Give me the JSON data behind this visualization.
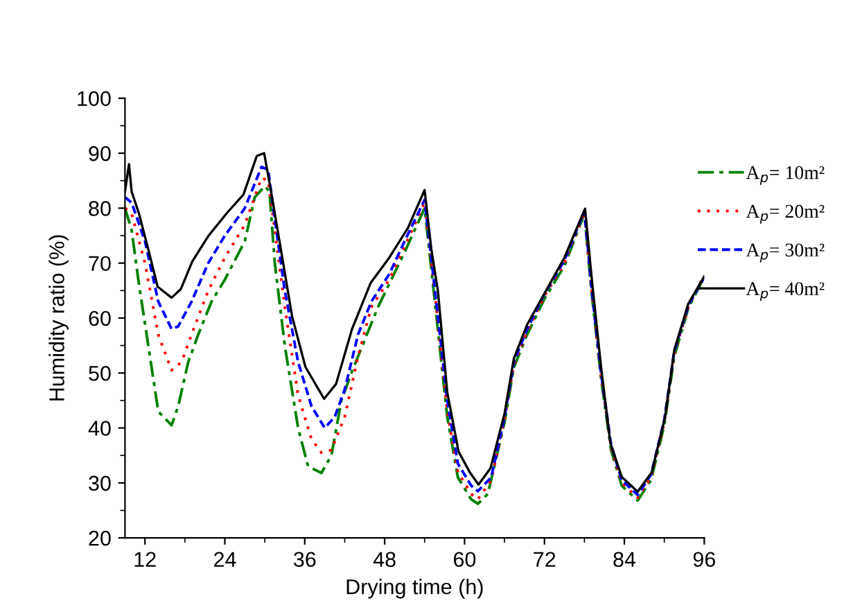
{
  "chart_data": {
    "type": "line",
    "xlabel": "Drying time (h)",
    "ylabel": "Humidity ratio (%)",
    "xlim": [
      9,
      96
    ],
    "xticks": [
      12,
      24,
      36,
      48,
      60,
      72,
      84,
      96
    ],
    "ylim": [
      20,
      100
    ],
    "yticks": [
      20,
      30,
      40,
      50,
      60,
      70,
      80,
      90,
      100
    ],
    "grid": false,
    "legend": "right",
    "marker": "none",
    "series": [
      {
        "name": "A$_{p}$= 10m²",
        "color": "#008000",
        "line_style": "dashdot",
        "x": [
          9,
          10,
          11,
          12.5,
          14,
          16,
          17,
          18.5,
          20,
          22,
          24,
          27,
          28.5,
          30,
          30.7,
          31.5,
          33,
          35,
          36.5,
          38.5,
          40,
          41.5,
          43,
          45,
          47,
          49,
          51,
          54,
          55,
          57.4,
          59,
          61,
          62,
          63.5,
          66,
          67.4,
          69.4,
          72,
          75,
          78,
          79,
          80.5,
          82,
          83.6,
          86,
          88,
          90,
          91.5,
          93.6,
          96
        ],
        "values": [
          80,
          76,
          67,
          55,
          43,
          40.5,
          44,
          52,
          57,
          63,
          67,
          74,
          82,
          84,
          83,
          70,
          55,
          40,
          33,
          31.8,
          35,
          45,
          50,
          56,
          62,
          67,
          72,
          80,
          69,
          42,
          31,
          27,
          26.2,
          28,
          41,
          51,
          57,
          63.5,
          69.5,
          79,
          65.5,
          49,
          36,
          29.5,
          26.8,
          30.5,
          40.5,
          53,
          61.8,
          67.5
        ]
      },
      {
        "name": "A$_{p}$= 20m²",
        "color": "#ff0000",
        "line_style": "dotted",
        "x": [
          9,
          10,
          12,
          14,
          16,
          17.5,
          19,
          21.5,
          24,
          27,
          29.5,
          30.5,
          31.5,
          33,
          35,
          37,
          38.5,
          40,
          42,
          44,
          46,
          48.7,
          51,
          54,
          55,
          57.4,
          59,
          61,
          62,
          64,
          66,
          67.4,
          69.4,
          72,
          75,
          78,
          79,
          80.5,
          82,
          83.6,
          86,
          88,
          90,
          91.5,
          93.6,
          96
        ],
        "values": [
          80,
          79,
          70,
          57,
          50.5,
          52,
          57,
          65,
          71,
          77,
          85.5,
          85,
          76,
          62,
          46,
          38,
          35.5,
          36,
          42,
          53,
          62,
          67,
          73,
          81,
          70.5,
          43,
          32,
          28,
          27,
          30.5,
          41.5,
          51.5,
          57.5,
          64,
          70,
          79.3,
          66,
          49.5,
          36.5,
          30,
          27.3,
          31,
          41,
          53.5,
          62,
          67.8
        ]
      },
      {
        "name": "A$_{p}$= 30m²",
        "color": "#0000ff",
        "line_style": "dashed",
        "x": [
          9,
          10,
          12,
          14,
          16,
          17,
          19,
          21.5,
          24,
          27,
          29.5,
          30.5,
          31.5,
          33,
          35,
          37,
          39,
          40.5,
          42,
          44,
          46,
          48.7,
          51,
          54,
          55,
          57.4,
          59,
          61,
          62,
          64,
          66,
          67.4,
          69.4,
          72,
          75,
          78,
          79,
          80.5,
          82,
          83.6,
          86,
          88,
          90,
          91.5,
          93.6,
          96
        ],
        "values": [
          82,
          81,
          74,
          63,
          58,
          58.5,
          63,
          70,
          75,
          80,
          87.5,
          87,
          78,
          65,
          52,
          44,
          40,
          42,
          47,
          57,
          63,
          68,
          74,
          81.5,
          71,
          45,
          33.5,
          29.5,
          28.5,
          31,
          42,
          52,
          58,
          64.4,
          70.5,
          79.5,
          66.5,
          50,
          37,
          30.5,
          27.8,
          31.5,
          41.5,
          54,
          62.3,
          67.4
        ]
      },
      {
        "name": "A$_{p}$= 40m²",
        "color": "#000000",
        "line_style": "solid",
        "x": [
          9,
          9.6,
          10,
          11.1,
          12.5,
          13.9,
          16,
          17.4,
          19.1,
          21.5,
          24.3,
          26.8,
          28.8,
          29.9,
          30.9,
          32.3,
          34.1,
          36.1,
          38.9,
          40.7,
          43.1,
          45.9,
          48.7,
          51.5,
          54,
          55,
          56,
          57.4,
          59.1,
          60.8,
          62.1,
          63.9,
          66,
          67.4,
          69.4,
          72.2,
          75,
          77.4,
          78.1,
          79.1,
          80.5,
          81.9,
          83.6,
          86,
          88.1,
          90.1,
          91.5,
          93.6,
          96
        ],
        "values": [
          83,
          88,
          83,
          79,
          72.5,
          65.7,
          63.7,
          65.3,
          70.3,
          74.9,
          79.1,
          82.5,
          89.5,
          90,
          83.3,
          73.3,
          60.3,
          51.1,
          45.3,
          48,
          58,
          66.4,
          71,
          76.4,
          83.3,
          72.6,
          64.9,
          46.5,
          35.7,
          31.9,
          29.7,
          32.7,
          42.6,
          52.6,
          58.8,
          64.9,
          71,
          77.9,
          79.9,
          67.2,
          51.1,
          37.3,
          31.1,
          28.4,
          31.9,
          41.9,
          54.2,
          62.6,
          67.6
        ]
      }
    ]
  }
}
